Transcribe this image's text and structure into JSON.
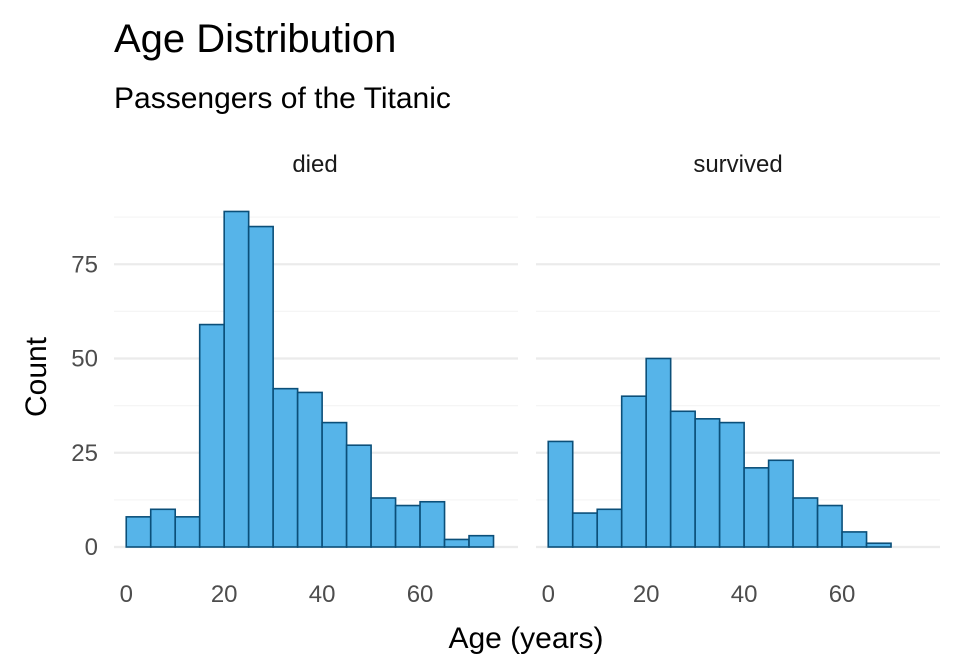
{
  "chart_data": {
    "type": "bar",
    "title": "Age Distribution",
    "subtitle": "Passengers of the Titanic",
    "xlabel": "Age (years)",
    "ylabel": "Count",
    "xlim": [
      -2.5,
      80
    ],
    "ylim": [
      0,
      90
    ],
    "x_ticks": [
      "0",
      "20",
      "40",
      "60"
    ],
    "y_ticks": [
      "0",
      "25",
      "50",
      "75"
    ],
    "bin_width": 5,
    "bin_starts": [
      0,
      5,
      10,
      15,
      20,
      25,
      30,
      35,
      40,
      45,
      50,
      55,
      60,
      65,
      70
    ],
    "grid": true,
    "colors": {
      "bar_fill": "#56B4E9",
      "bar_outline": "#0B4F79",
      "grid_major": "#EBEBEB",
      "grid_minor": "#F5F5F5"
    },
    "panels": [
      {
        "name": "died",
        "values": [
          8,
          10,
          8,
          59,
          89,
          85,
          42,
          41,
          33,
          27,
          13,
          11,
          12,
          2,
          3
        ]
      },
      {
        "name": "survived",
        "values": [
          28,
          9,
          10,
          40,
          50,
          36,
          34,
          33,
          21,
          23,
          13,
          11,
          4,
          1,
          0
        ]
      }
    ]
  }
}
